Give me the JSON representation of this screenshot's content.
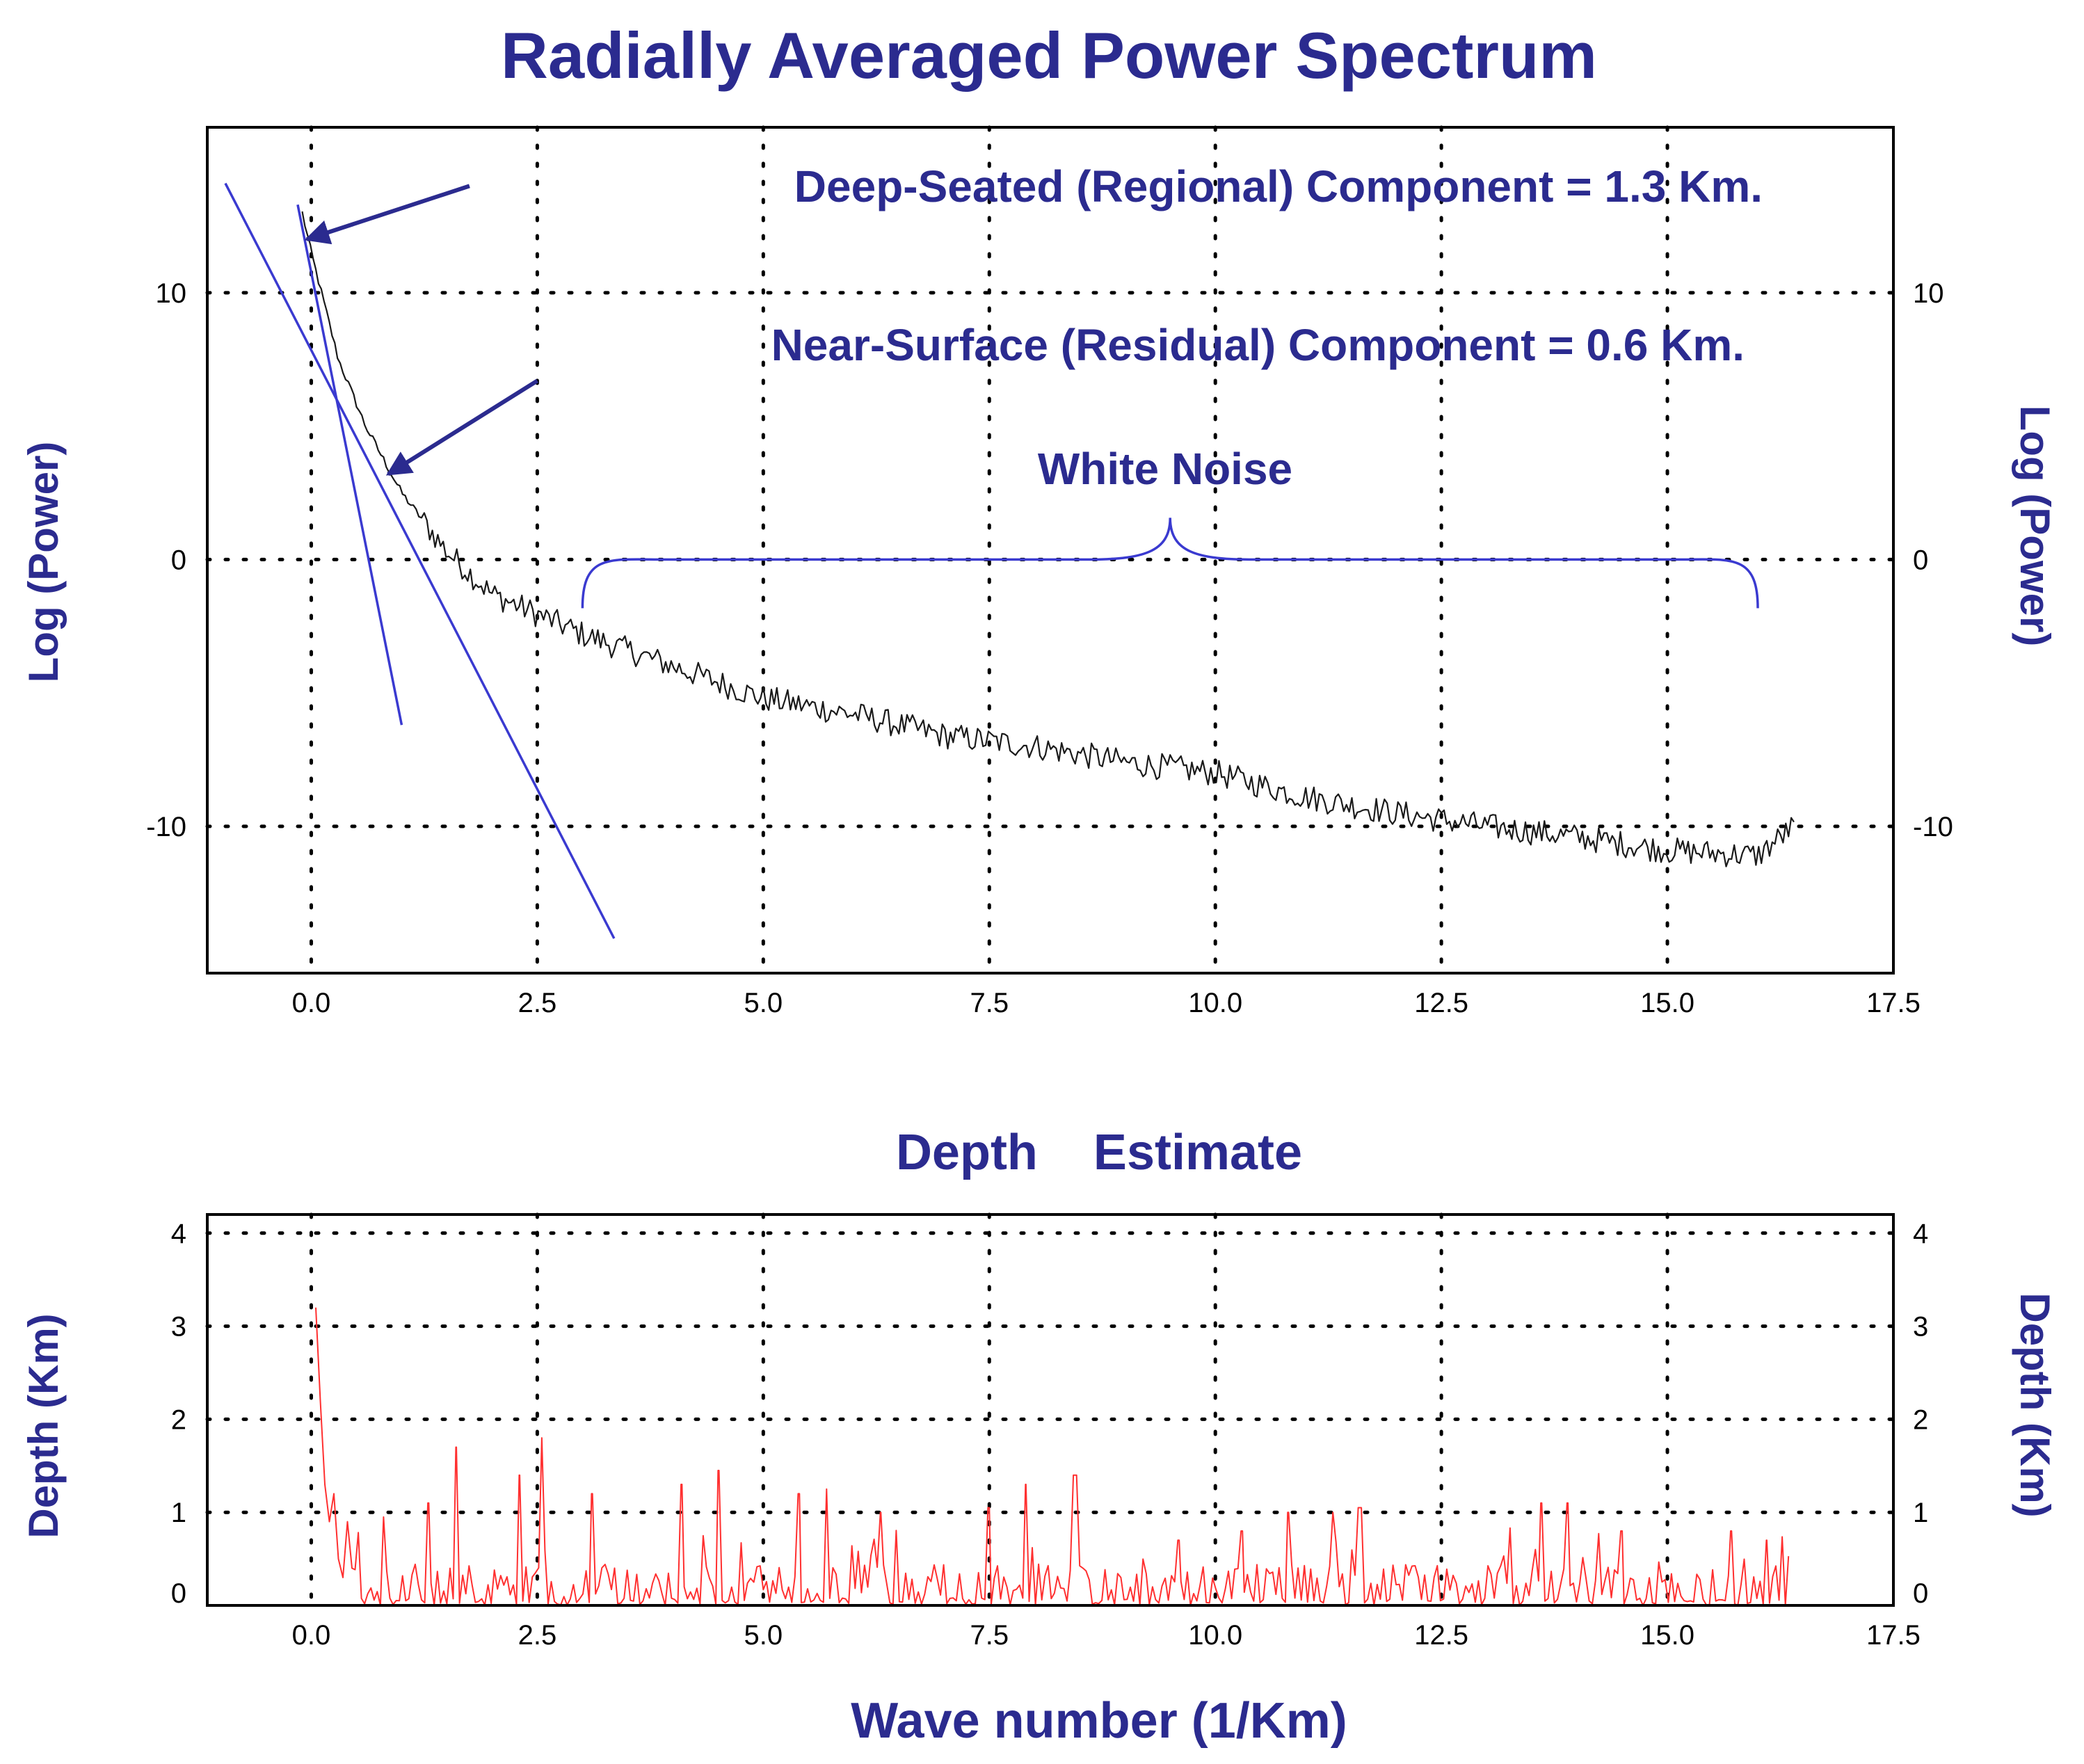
{
  "colors": {
    "title": "#2b2b8f",
    "fit_line": "#3a3ad0",
    "spectrum": "#1a1a1a",
    "depth": "#ff3030",
    "axis": "#000000",
    "grid": "#000000",
    "tick": "#000000"
  },
  "chart_data": [
    {
      "type": "line",
      "title": "Radially Averaged Power Spectrum",
      "xlabel": "",
      "ylabel_left": "Log (Power)",
      "ylabel_right": "Log (Power)",
      "xlim": [
        -1.15,
        17.5
      ],
      "ylim": [
        -15.5,
        16.2
      ],
      "xticks": [
        0.0,
        2.5,
        5.0,
        7.5,
        10.0,
        12.5,
        15.0,
        17.5
      ],
      "xtick_labels": [
        "0.0",
        "2.5",
        "5.0",
        "7.5",
        "10.0",
        "12.5",
        "15.0",
        "17.5"
      ],
      "yticks": [
        10,
        0,
        -10
      ],
      "ytick_labels": [
        "10",
        "0",
        "-10"
      ],
      "grid": true,
      "spectrum_anchors": {
        "x": [
          -0.1,
          0.0,
          0.3,
          0.6,
          1.0,
          1.5,
          2.0,
          3.0,
          4.0,
          5.0,
          6.0,
          7.0,
          8.0,
          9.0,
          10.0,
          11.0,
          12.0,
          13.0,
          14.0,
          15.0,
          16.0,
          16.4
        ],
        "y": [
          13.0,
          11.5,
          7.5,
          5.0,
          2.5,
          0.3,
          -1.3,
          -2.8,
          -4.0,
          -5.2,
          -5.8,
          -6.6,
          -7.0,
          -7.6,
          -8.0,
          -8.9,
          -9.5,
          -10.0,
          -10.4,
          -10.9,
          -11.1,
          -10.0
        ]
      },
      "spectrum_noise_amplitude": 0.5,
      "fit_lines": [
        {
          "name": "Deep-Seated (Regional) Component",
          "x": [
            -0.15,
            1.0
          ],
          "y": [
            13.3,
            -6.2
          ]
        },
        {
          "name": "Near-Surface (Residual) Component",
          "x": [
            -0.95,
            3.35
          ],
          "y": [
            14.1,
            -14.2
          ]
        }
      ],
      "annotations": {
        "deep": "Deep-Seated (Regional) Component = 1.3 Km.",
        "near": "Near-Surface (Residual) Component = 0.6 Km.",
        "white_noise": "White Noise"
      },
      "arrows": [
        {
          "from": [
            1.75,
            14.0
          ],
          "to": [
            -0.05,
            12.0
          ]
        },
        {
          "from": [
            2.5,
            6.7
          ],
          "to": [
            0.85,
            3.2
          ]
        }
      ],
      "white_noise_brace": {
        "x": [
          3.0,
          16.0
        ],
        "y": 0.0,
        "peak_x": 9.5
      }
    },
    {
      "type": "line",
      "title": "Depth    Estimate",
      "xlabel": "Wave number (1/Km)",
      "ylabel_left": "Depth (Km)",
      "ylabel_right": "Depth (Km)",
      "xlim": [
        -1.15,
        17.5
      ],
      "ylim": [
        0,
        4.2
      ],
      "xticks": [
        0.0,
        2.5,
        5.0,
        7.5,
        10.0,
        12.5,
        15.0,
        17.5
      ],
      "xtick_labels": [
        "0.0",
        "2.5",
        "5.0",
        "7.5",
        "10.0",
        "12.5",
        "15.0",
        "17.5"
      ],
      "yticks": [
        0,
        1,
        2,
        3,
        4
      ],
      "ytick_labels": [
        "0",
        "1",
        "2",
        "3",
        "4"
      ],
      "grid": true,
      "depth_head": {
        "x": [
          0.05,
          0.1,
          0.15,
          0.2,
          0.25,
          0.3,
          0.35,
          0.4,
          0.45
        ],
        "y": [
          3.2,
          2.2,
          1.3,
          0.9,
          1.2,
          0.5,
          0.3,
          0.9,
          0.4
        ]
      },
      "depth_peaks": {
        "x": [
          0.8,
          1.3,
          1.6,
          2.3,
          2.55,
          3.1,
          4.1,
          4.5,
          5.4,
          5.7,
          6.3,
          7.5,
          7.9,
          8.45,
          9.6,
          10.3,
          10.8,
          11.3,
          11.6,
          13.6,
          13.9,
          14.5,
          15.7,
          16.1
        ],
        "y": [
          0.95,
          1.1,
          1.7,
          1.4,
          1.8,
          1.2,
          1.3,
          1.45,
          1.2,
          1.25,
          1.0,
          1.05,
          1.3,
          1.4,
          0.7,
          0.8,
          1.0,
          1.0,
          1.05,
          1.1,
          1.1,
          0.8,
          0.8,
          0.7
        ]
      },
      "depth_range_end": 16.35,
      "depth_base_amplitude": 0.45
    }
  ]
}
